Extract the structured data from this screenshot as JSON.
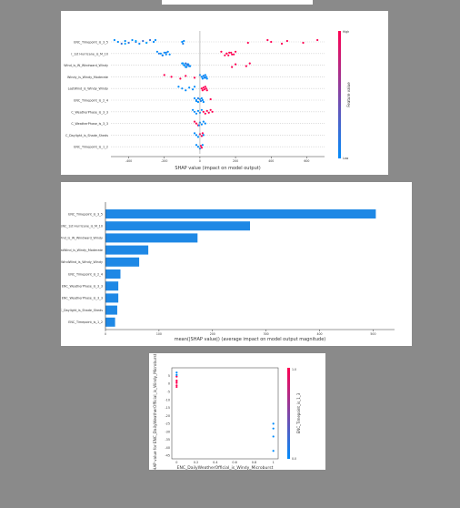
{
  "colors": {
    "positive": "#ff0052",
    "negative": "#008bfb",
    "bar": "#1e88e5",
    "grid": "#cccccc",
    "axis": "#333333"
  },
  "chart_data": [
    {
      "type": "scatter",
      "subtype": "shap-beeswarm",
      "features": [
        "ENC_Timepoint_is_3_5",
        "I_1st Hurricane_is_M_10",
        "Wind_is_W_Windward_Windy",
        "Windy_is_Windy_Moderate",
        "LastWind_is_Windy_Windy",
        "ENC_Timepoint_is_2_4",
        "C_WeatherPhase_is_3_3",
        "C_WeatherPhase_is_3_3",
        "C_Daylight_is_Shade_Sheds",
        "ENC_Timepoint_is_1_2"
      ],
      "points": [
        [
          [
            -480,
            0.0
          ],
          [
            -460,
            0.0
          ],
          [
            -440,
            0.2
          ],
          [
            -420,
            0.0
          ],
          [
            -400,
            0.2
          ],
          [
            -380,
            0.0
          ],
          [
            -360,
            0.2
          ],
          [
            -340,
            0.0
          ],
          [
            -320,
            0.2
          ],
          [
            -300,
            0.0
          ],
          [
            -280,
            0.2
          ],
          [
            -260,
            0.0
          ],
          [
            -420,
            -0.2
          ],
          [
            -360,
            -0.2
          ],
          [
            -300,
            -0.2
          ],
          [
            -250,
            0.0
          ],
          [
            -100,
            0.0
          ],
          [
            -95,
            0.1
          ],
          [
            -90,
            0.0
          ],
          [
            270,
            1.0
          ],
          [
            380,
            1.0
          ],
          [
            400,
            1.0
          ],
          [
            460,
            1.0
          ],
          [
            490,
            1.0
          ],
          [
            580,
            1.0
          ],
          [
            660,
            1.0
          ]
        ],
        [
          [
            -240,
            0.0
          ],
          [
            -220,
            0.0
          ],
          [
            -210,
            0.0
          ],
          [
            -200,
            0.0
          ],
          [
            -190,
            0.0
          ],
          [
            -180,
            0.0
          ],
          [
            -230,
            0.1
          ],
          [
            -210,
            0.1
          ],
          [
            -190,
            0.1
          ],
          [
            -170,
            0.0
          ],
          [
            120,
            1.0
          ],
          [
            150,
            1.0
          ],
          [
            160,
            1.0
          ],
          [
            175,
            1.0
          ],
          [
            190,
            1.0
          ],
          [
            200,
            1.0
          ],
          [
            150,
            1.0
          ],
          [
            140,
            1.0
          ],
          [
            165,
            1.0
          ],
          [
            180,
            1.0
          ]
        ],
        [
          [
            -100,
            0.0
          ],
          [
            -90,
            0.0
          ],
          [
            -80,
            0.1
          ],
          [
            -70,
            0.0
          ],
          [
            -60,
            0.1
          ],
          [
            -95,
            -0.1
          ],
          [
            -85,
            -0.1
          ],
          [
            -75,
            -0.1
          ],
          [
            -65,
            0.0
          ],
          [
            -55,
            0.0
          ],
          [
            -80,
            0.2
          ],
          [
            -70,
            0.2
          ],
          [
            180,
            1.0
          ],
          [
            200,
            1.0
          ],
          [
            260,
            1.0
          ],
          [
            280,
            1.0
          ]
        ],
        [
          [
            -200,
            1.0
          ],
          [
            -160,
            1.0
          ],
          [
            -110,
            1.0
          ],
          [
            -80,
            1.0
          ],
          [
            -30,
            1.0
          ],
          [
            0,
            0.0
          ],
          [
            10,
            0.0
          ],
          [
            15,
            0.0
          ],
          [
            20,
            0.0
          ],
          [
            25,
            0.0
          ],
          [
            30,
            0.0
          ],
          [
            35,
            0.0
          ],
          [
            40,
            0.0
          ],
          [
            20,
            0.1
          ],
          [
            30,
            0.1
          ]
        ],
        [
          [
            -120,
            0.0
          ],
          [
            -100,
            0.0
          ],
          [
            -80,
            0.0
          ],
          [
            -60,
            0.0
          ],
          [
            -40,
            0.0
          ],
          [
            -30,
            0.0
          ],
          [
            10,
            1.0
          ],
          [
            15,
            1.0
          ],
          [
            20,
            1.0
          ],
          [
            25,
            1.0
          ],
          [
            30,
            1.0
          ],
          [
            35,
            1.0
          ],
          [
            40,
            1.0
          ]
        ],
        [
          [
            -30,
            0.0
          ],
          [
            -20,
            0.0
          ],
          [
            -10,
            0.0
          ],
          [
            0,
            0.0
          ],
          [
            5,
            0.1
          ],
          [
            10,
            0.0
          ],
          [
            15,
            0.0
          ],
          [
            20,
            0.0
          ],
          [
            60,
            1.0
          ],
          [
            -20,
            0.0
          ],
          [
            -10,
            0.1
          ]
        ],
        [
          [
            -40,
            0.0
          ],
          [
            -30,
            0.0
          ],
          [
            -20,
            0.0
          ],
          [
            -10,
            0.0
          ],
          [
            0,
            0.0
          ],
          [
            10,
            0.0
          ],
          [
            20,
            1.0
          ],
          [
            30,
            1.0
          ],
          [
            40,
            1.0
          ],
          [
            50,
            1.0
          ],
          [
            60,
            1.0
          ],
          [
            70,
            1.0
          ]
        ],
        [
          [
            -30,
            1.0
          ],
          [
            -20,
            1.0
          ],
          [
            -10,
            1.0
          ],
          [
            0,
            0.0
          ],
          [
            10,
            0.0
          ],
          [
            20,
            0.0
          ],
          [
            30,
            0.0
          ],
          [
            -5,
            0.0
          ]
        ],
        [
          [
            -30,
            0.0
          ],
          [
            -20,
            0.0
          ],
          [
            -10,
            0.0
          ],
          [
            0,
            1.0
          ],
          [
            10,
            1.0
          ],
          [
            15,
            1.0
          ],
          [
            20,
            0.0
          ]
        ],
        [
          [
            -20,
            0.0
          ],
          [
            -10,
            0.0
          ],
          [
            0,
            0.0
          ],
          [
            5,
            1.0
          ],
          [
            10,
            1.0
          ],
          [
            15,
            0.0
          ]
        ]
      ],
      "xlim": [
        -500,
        700
      ],
      "ticks": [
        -400,
        -200,
        0,
        200,
        400,
        600
      ],
      "xlabel": "SHAP value (impact on model output)",
      "colorbar": {
        "label": "Feature value",
        "high": "High",
        "low": "Low"
      },
      "grid": true
    },
    {
      "type": "bar",
      "orientation": "horizontal",
      "categories": [
        "ENC_Timepoint_is_3_5",
        "ENC_1st Hurricane_is_M_10",
        "LastWind_is_W_Windward_Windy",
        "LastWind_is_Windy_Moderate",
        "LastWindWind_is_Windy_Windy",
        "ENC_Timepoint_is_2_4",
        "ENC_WeatherPhase_is_3_3",
        "ENC_WeatherPhase_is_3_3",
        "ENC_Daylight_is_Shade_Sheds",
        "ENC_Timepoint_is_1_2"
      ],
      "values": [
        505,
        270,
        172,
        80,
        63,
        28,
        24,
        24,
        22,
        18
      ],
      "xlim": [
        0,
        540
      ],
      "ticks": [
        0,
        100,
        200,
        300,
        400,
        500
      ],
      "xlabel": "mean(|SHAP value|) (average impact on model output magnitude)"
    },
    {
      "type": "scatter",
      "subtype": "shap-dependence",
      "points": [
        {
          "x": 0.0,
          "y": 2.0,
          "c": 1
        },
        {
          "x": 0.0,
          "y": 7.0,
          "c": 0
        },
        {
          "x": 0.0,
          "y": 4.5,
          "c": 1
        },
        {
          "x": 0.0,
          "y": 1.5,
          "c": 1
        },
        {
          "x": 0.0,
          "y": 0.5,
          "c": 1
        },
        {
          "x": 0.0,
          "y": -1.0,
          "c": 1
        },
        {
          "x": 0.0,
          "y": -2.0,
          "c": 1
        },
        {
          "x": 0.0,
          "y": 5.5,
          "c": 0
        },
        {
          "x": 1.0,
          "y": -25.0,
          "c": 0
        },
        {
          "x": 1.0,
          "y": -33.0,
          "c": 0
        },
        {
          "x": 1.0,
          "y": -42.0,
          "c": 0
        },
        {
          "x": 1.0,
          "y": -28.0,
          "c": 0
        }
      ],
      "xlim": [
        -0.05,
        1.05
      ],
      "ylim": [
        -47,
        10
      ],
      "xticks": [
        0.0,
        0.2,
        0.4,
        0.6,
        0.8,
        1.0
      ],
      "yticks": [
        5.0,
        0.0,
        -5.0,
        -10.0,
        -15.0,
        -20.0,
        -25.0,
        -30.0,
        -35.0,
        -40.0,
        -45.0
      ],
      "xlabel": "ENC_DailyWeatherOfficial_is_Windy_Microburst",
      "ylabel": "SHAP value for\nENC_DailyWeatherOfficial_is_Windy_Microburst",
      "colorbar": {
        "label": "ENC_Timepoint_is_1_3",
        "ticks": [
          "1.0",
          "0.0"
        ]
      }
    }
  ]
}
